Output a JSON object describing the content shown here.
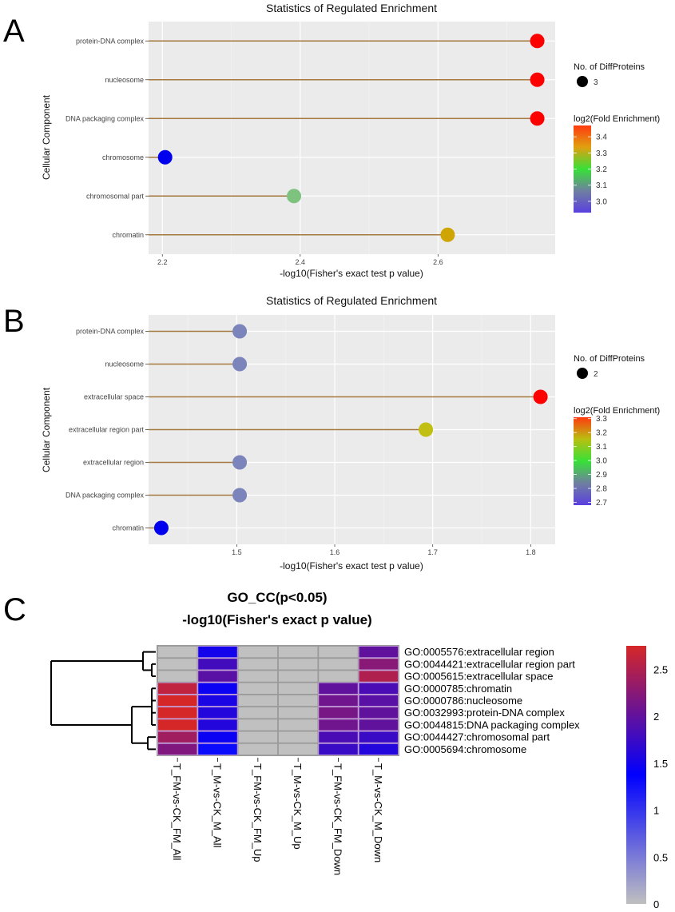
{
  "panels": {
    "A": {
      "letter": "A"
    },
    "B": {
      "letter": "B"
    },
    "C": {
      "letter": "C"
    }
  },
  "chart_data": [
    {
      "id": "A",
      "type": "scatter",
      "subtype": "lollipop",
      "title": "Statistics of Regulated Enrichment",
      "xlabel": "-log10(Fisher's exact test p value)",
      "ylabel": "Cellular Component",
      "xlim": [
        2.18,
        2.77
      ],
      "xticks": [
        2.2,
        2.4,
        2.6
      ],
      "xtick_labels": [
        "2.2",
        "2.4",
        "2.6"
      ],
      "grid": true,
      "categories": [
        "protein-DNA complex",
        "nucleosome",
        "DNA packaging complex",
        "chromosome",
        "chromosomal part",
        "chromatin"
      ],
      "x": [
        2.744,
        2.744,
        2.744,
        2.204,
        2.391,
        2.614
      ],
      "color_values": [
        3.45,
        3.45,
        3.45,
        2.95,
        3.15,
        3.35
      ],
      "size_legend": {
        "title": "No. of DiffProteins",
        "values": [
          3
        ],
        "labels": [
          "3"
        ]
      },
      "color_legend": {
        "title": "log2(Fold Enrichment)",
        "range": [
          2.93,
          3.47
        ],
        "ticks": [
          3.4,
          3.3,
          3.2,
          3.1,
          3.0
        ],
        "tick_labels": [
          "3.4",
          "3.3",
          "3.2",
          "3.1",
          "3.0"
        ],
        "colors": [
          "#5a3fe0",
          "#6f7fa0",
          "#38e038",
          "#e0a010",
          "#ff3a10"
        ]
      },
      "point_colors": [
        "#ff0000",
        "#ff0000",
        "#ff0000",
        "#0000ee",
        "#7dc27f",
        "#cfa503"
      ],
      "legend_position": "right"
    },
    {
      "id": "B",
      "type": "scatter",
      "subtype": "lollipop",
      "title": "Statistics of Regulated Enrichment",
      "xlabel": "-log10(Fisher's exact test p value)",
      "ylabel": "Cellular Component",
      "xlim": [
        1.41,
        1.825
      ],
      "xticks": [
        1.5,
        1.6,
        1.7,
        1.8
      ],
      "xtick_labels": [
        "1.5",
        "1.6",
        "1.7",
        "1.8"
      ],
      "grid": true,
      "categories": [
        "protein-DNA complex",
        "nucleosome",
        "extracellular space",
        "extracellular region part",
        "extracellular region",
        "DNA packaging complex",
        "chromatin"
      ],
      "x": [
        1.503,
        1.503,
        1.81,
        1.693,
        1.503,
        1.503,
        1.423
      ],
      "color_values": [
        2.8,
        2.8,
        3.3,
        3.15,
        2.8,
        2.8,
        2.7
      ],
      "size_legend": {
        "title": "No. of DiffProteins",
        "values": [
          2
        ],
        "labels": [
          "2"
        ]
      },
      "color_legend": {
        "title": "log2(Fold Enrichment)",
        "range": [
          2.68,
          3.31
        ],
        "ticks": [
          3.3,
          3.2,
          3.1,
          3.0,
          2.9,
          2.8,
          2.7
        ],
        "tick_labels": [
          "3.3",
          "3.2",
          "3.1",
          "3.0",
          "2.9",
          "2.8",
          "2.7"
        ],
        "colors": [
          "#5a3fe0",
          "#6f7fa0",
          "#38e038",
          "#b8c010",
          "#ff3a10"
        ]
      },
      "point_colors": [
        "#7b84bb",
        "#7b84bb",
        "#ff0000",
        "#c0bf12",
        "#7b84bb",
        "#7b84bb",
        "#0000ee"
      ],
      "legend_position": "right"
    },
    {
      "id": "C",
      "type": "heatmap",
      "title": "GO_CC(p<0.05)",
      "subtitle": "-log10(Fisher's exact p value)",
      "rows": [
        "GO:0005576:extracellular region",
        "GO:0044421:extracellular region part",
        "GO:0005615:extracellular space",
        "GO:0000785:chromatin",
        "GO:0000786:nucleosome",
        "GO:0032993:protein-DNA complex",
        "GO:0044815:DNA packaging complex",
        "GO:0044427:chromosomal part",
        "GO:0005694:chromosome"
      ],
      "columns": [
        "T_FM-vs-CK_FM_All",
        "T_M-vs-CK_M_All",
        "T_FM-vs-CK_FM_Up",
        "T_M-vs-CK_M_Up",
        "T_FM-vs-CK_FM_Down",
        "T_M-vs-CK_M_Down"
      ],
      "values": [
        [
          0,
          1.5,
          0,
          0,
          0,
          2.0
        ],
        [
          0,
          1.8,
          0,
          0,
          0,
          2.25
        ],
        [
          0,
          1.95,
          0,
          0,
          0,
          2.5
        ],
        [
          2.6,
          1.45,
          0,
          0,
          2.0,
          1.85
        ],
        [
          2.75,
          1.55,
          0,
          0,
          2.1,
          1.95
        ],
        [
          2.75,
          1.6,
          0,
          0,
          2.15,
          2.0
        ],
        [
          2.75,
          1.6,
          0,
          0,
          2.1,
          2.0
        ],
        [
          2.4,
          1.45,
          0,
          0,
          1.85,
          1.75
        ],
        [
          2.2,
          1.3,
          0,
          0,
          1.75,
          1.6
        ]
      ],
      "na_color": "#c0c0c0",
      "colorbar": {
        "range": [
          0,
          2.75
        ],
        "ticks": [
          0,
          0.5,
          1,
          1.5,
          2,
          2.5
        ],
        "tick_labels": [
          "0",
          "0.5",
          "1",
          "1.5",
          "2",
          "2.5"
        ],
        "colors": [
          "#c0c0c0",
          "#0000ff",
          "#d62728"
        ]
      },
      "row_dendrogram": true,
      "legend_position": "right"
    }
  ]
}
